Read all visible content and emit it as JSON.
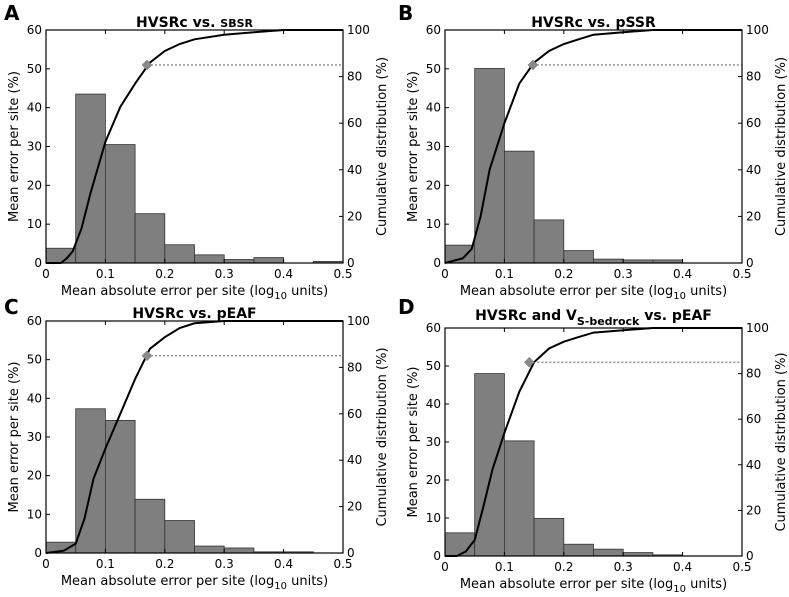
{
  "figure": {
    "x_unit_prefix": "Mean absolute error per site (log",
    "x_unit_sub": "10",
    "x_unit_suffix": " units)"
  },
  "chart_data": [
    {
      "type": "bar",
      "panel_label": "A",
      "title": "HVSRc vs. SBSR",
      "title_parts": [
        {
          "text": "HVSRc vs. ",
          "small": false,
          "sub": false
        },
        {
          "text": "SBSR",
          "small": true,
          "sub": false
        }
      ],
      "xlabel": "Mean absolute error per site (log10 units)",
      "ylabel": "Mean error per site (%)",
      "y2label": "Cumulative distribution (%)",
      "xlim": [
        0,
        0.5
      ],
      "ylim": [
        0,
        60
      ],
      "y2lim": [
        0,
        100
      ],
      "xticks": [
        "0",
        "0.1",
        "0.2",
        "0.3",
        "0.4",
        "0.5"
      ],
      "yticks": [
        "0",
        "10",
        "20",
        "30",
        "40",
        "50",
        "60"
      ],
      "y2ticks": [
        "0",
        "20",
        "40",
        "60",
        "80",
        "100"
      ],
      "bin_edges": [
        0,
        0.05,
        0.1,
        0.15,
        0.2,
        0.25,
        0.3,
        0.35,
        0.4,
        0.45,
        0.5
      ],
      "values": [
        3.8,
        43.5,
        30.5,
        12.7,
        4.7,
        2.1,
        0.9,
        1.4,
        0.0,
        0.4
      ],
      "cumulative": {
        "x": [
          0,
          0.025,
          0.035,
          0.045,
          0.06,
          0.075,
          0.1,
          0.125,
          0.15,
          0.175,
          0.2,
          0.225,
          0.25,
          0.3,
          0.35,
          0.4,
          0.45,
          0.5
        ],
        "y": [
          0,
          0,
          2,
          5,
          15,
          30,
          52,
          67,
          77,
          86,
          91,
          94,
          96,
          98,
          99,
          100,
          100,
          100
        ]
      },
      "reference_point": {
        "x": 0.17,
        "y": 85
      }
    },
    {
      "type": "bar",
      "panel_label": "B",
      "title": "HVSRc vs. pSSR",
      "title_parts": [
        {
          "text": "HVSRc vs. pSSR",
          "small": false,
          "sub": false
        }
      ],
      "xlabel": "Mean absolute error per site (log10 units)",
      "ylabel": "Mean error per site (%)",
      "y2label": "Cumulative distribution (%)",
      "xlim": [
        0,
        0.5
      ],
      "ylim": [
        0,
        60
      ],
      "y2lim": [
        0,
        100
      ],
      "xticks": [
        "0",
        "0.1",
        "0.2",
        "0.3",
        "0.4",
        "0.5"
      ],
      "yticks": [
        "0",
        "10",
        "20",
        "30",
        "40",
        "50",
        "60"
      ],
      "y2ticks": [
        "0",
        "20",
        "40",
        "60",
        "80",
        "100"
      ],
      "bin_edges": [
        0,
        0.05,
        0.1,
        0.15,
        0.2,
        0.25,
        0.3,
        0.35,
        0.4,
        0.45,
        0.5
      ],
      "values": [
        4.6,
        50.1,
        28.8,
        11.1,
        3.2,
        1.0,
        0.8,
        0.8,
        0.0,
        0.0
      ],
      "cumulative": {
        "x": [
          0,
          0.03,
          0.045,
          0.06,
          0.075,
          0.1,
          0.125,
          0.15,
          0.175,
          0.2,
          0.225,
          0.25,
          0.3,
          0.35,
          0.4,
          0.45,
          0.5
        ],
        "y": [
          0,
          2,
          6,
          20,
          40,
          60,
          77,
          86,
          91,
          94,
          96,
          98,
          99,
          100,
          100,
          100,
          100
        ]
      },
      "reference_point": {
        "x": 0.148,
        "y": 85
      }
    },
    {
      "type": "bar",
      "panel_label": "C",
      "title": "HVSRc vs. pEAF",
      "title_parts": [
        {
          "text": "HVSRc vs. pEAF",
          "small": false,
          "sub": false
        }
      ],
      "xlabel": "Mean absolute error per site (log10 units)",
      "ylabel": "Mean error per site (%)",
      "y2label": "Cumulative distribution (%)",
      "xlim": [
        0,
        0.5
      ],
      "ylim": [
        0,
        60
      ],
      "y2lim": [
        0,
        100
      ],
      "xticks": [
        "0",
        "0.1",
        "0.2",
        "0.3",
        "0.4",
        "0.5"
      ],
      "yticks": [
        "0",
        "10",
        "20",
        "30",
        "40",
        "50",
        "60"
      ],
      "y2ticks": [
        "0",
        "20",
        "40",
        "60",
        "80",
        "100"
      ],
      "bin_edges": [
        0,
        0.05,
        0.1,
        0.15,
        0.2,
        0.25,
        0.3,
        0.35,
        0.4,
        0.45,
        0.5
      ],
      "values": [
        2.8,
        37.3,
        34.3,
        13.9,
        8.4,
        1.8,
        1.3,
        0.3,
        0.3,
        0.0
      ],
      "cumulative": {
        "x": [
          0,
          0.03,
          0.05,
          0.065,
          0.08,
          0.1,
          0.125,
          0.15,
          0.175,
          0.2,
          0.225,
          0.25,
          0.3,
          0.35,
          0.4,
          0.45,
          0.5
        ],
        "y": [
          0,
          1,
          4,
          15,
          32,
          45,
          60,
          75,
          88,
          93,
          97,
          99,
          100,
          100,
          100,
          100,
          100
        ]
      },
      "reference_point": {
        "x": 0.17,
        "y": 85
      }
    },
    {
      "type": "bar",
      "panel_label": "D",
      "title": "HVSRc and VS-bedrock vs. pEAF",
      "title_parts": [
        {
          "text": "HVSRc and V",
          "small": false,
          "sub": false
        },
        {
          "text": "S-bedrock",
          "small": false,
          "sub": true
        },
        {
          "text": " vs. pEAF",
          "small": false,
          "sub": false
        }
      ],
      "xlabel": "Mean absolute error per site (log10 units)",
      "ylabel": "Mean error per site (%)",
      "y2label": "Cumulative distribution (%)",
      "xlim": [
        0,
        0.5
      ],
      "ylim": [
        0,
        60
      ],
      "y2lim": [
        0,
        100
      ],
      "xticks": [
        "0",
        "0.1",
        "0.2",
        "0.3",
        "0.4",
        "0.5"
      ],
      "yticks": [
        "0",
        "10",
        "20",
        "30",
        "40",
        "50",
        "60"
      ],
      "y2ticks": [
        "0",
        "20",
        "40",
        "60",
        "80",
        "100"
      ],
      "bin_edges": [
        0,
        0.05,
        0.1,
        0.15,
        0.2,
        0.25,
        0.3,
        0.35,
        0.4,
        0.45,
        0.5
      ],
      "values": [
        6.1,
        48.0,
        30.3,
        9.9,
        3.1,
        1.8,
        0.9,
        0.3,
        0.0,
        0.0
      ],
      "cumulative": {
        "x": [
          0,
          0.02,
          0.035,
          0.05,
          0.065,
          0.08,
          0.1,
          0.125,
          0.15,
          0.175,
          0.2,
          0.225,
          0.25,
          0.3,
          0.35,
          0.4,
          0.45,
          0.5
        ],
        "y": [
          0,
          0,
          2,
          7,
          22,
          38,
          54,
          72,
          85,
          91,
          94,
          96,
          98,
          99,
          100,
          100,
          100,
          100
        ]
      },
      "reference_point": {
        "x": 0.142,
        "y": 85
      }
    }
  ]
}
